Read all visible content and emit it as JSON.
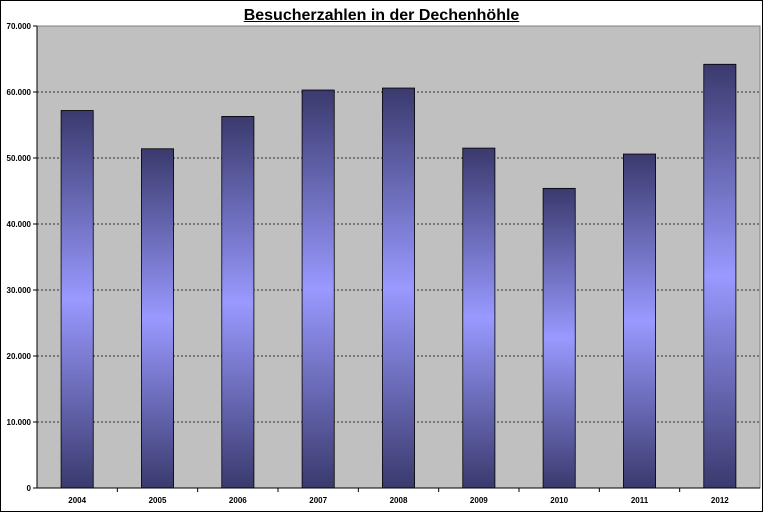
{
  "chart_data": {
    "type": "bar",
    "title": "Besucherzahlen in der Dechenhöhle",
    "xlabel": "",
    "ylabel": "",
    "categories": [
      "2004",
      "2005",
      "2006",
      "2007",
      "2008",
      "2009",
      "2010",
      "2011",
      "2012"
    ],
    "values": [
      57200,
      51400,
      56300,
      60300,
      60600,
      51500,
      45400,
      50600,
      64200
    ],
    "ylim": [
      0,
      70000
    ],
    "yticks": [
      0,
      10000,
      20000,
      30000,
      40000,
      50000,
      60000,
      70000
    ],
    "ytick_labels": [
      "0",
      "10.000",
      "20.000",
      "30.000",
      "40.000",
      "50.000",
      "60.000",
      "70.000"
    ],
    "grid": true,
    "legend": "none",
    "colors": {
      "plot_background": "#c0c0c0",
      "bar_edge": "#3a3a6e",
      "bar_center": "#9999ff",
      "gridline": "#000000"
    }
  }
}
